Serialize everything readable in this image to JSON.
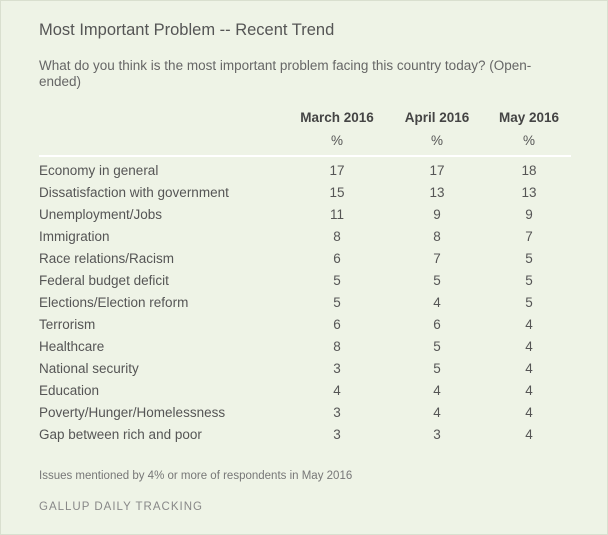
{
  "title": "Most Important Problem -- Recent Trend",
  "subtitle": "What do you think is the most important problem facing this country today? (Open-ended)",
  "columns": [
    {
      "label": "March 2016",
      "unit": "%"
    },
    {
      "label": "April 2016",
      "unit": "%"
    },
    {
      "label": "May 2016",
      "unit": "%"
    }
  ],
  "rows": [
    {
      "label": "Economy in general",
      "values": [
        "17",
        "17",
        "18"
      ]
    },
    {
      "label": "Dissatisfaction with government",
      "values": [
        "15",
        "13",
        "13"
      ]
    },
    {
      "label": "Unemployment/Jobs",
      "values": [
        "11",
        "9",
        "9"
      ]
    },
    {
      "label": "Immigration",
      "values": [
        "8",
        "8",
        "7"
      ]
    },
    {
      "label": "Race relations/Racism",
      "values": [
        "6",
        "7",
        "5"
      ]
    },
    {
      "label": "Federal budget deficit",
      "values": [
        "5",
        "5",
        "5"
      ]
    },
    {
      "label": "Elections/Election reform",
      "values": [
        "5",
        "4",
        "5"
      ]
    },
    {
      "label": "Terrorism",
      "values": [
        "6",
        "6",
        "4"
      ]
    },
    {
      "label": "Healthcare",
      "values": [
        "8",
        "5",
        "4"
      ]
    },
    {
      "label": "National security",
      "values": [
        "3",
        "5",
        "4"
      ]
    },
    {
      "label": "Education",
      "values": [
        "4",
        "4",
        "4"
      ]
    },
    {
      "label": "Poverty/Hunger/Homelessness",
      "values": [
        "3",
        "4",
        "4"
      ]
    },
    {
      "label": "Gap between rich and poor",
      "values": [
        "3",
        "3",
        "4"
      ]
    }
  ],
  "note": "Issues mentioned by 4% or more of respondents in May 2016",
  "source": "GALLUP DAILY TRACKING",
  "colors": {
    "background": "#eef3e6",
    "text": "#555555",
    "rule": "#ffffff"
  }
}
